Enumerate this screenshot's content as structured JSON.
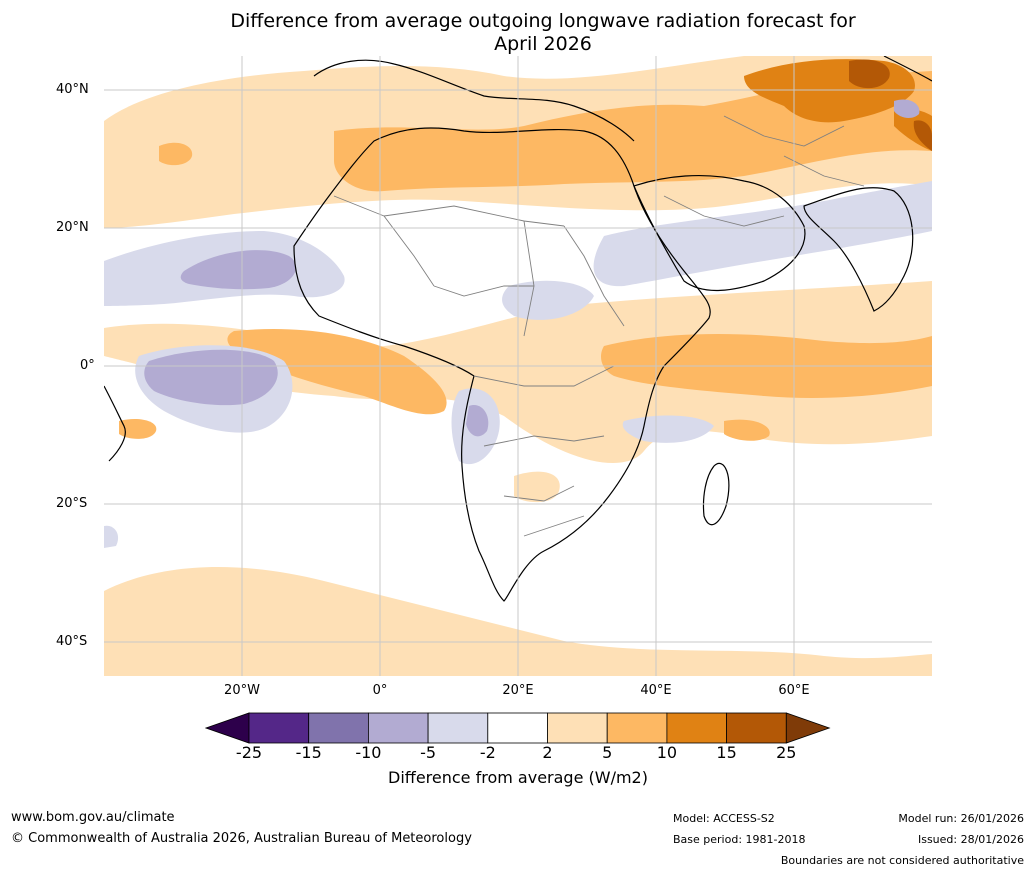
{
  "title_line1": "Difference from average outgoing longwave radiation forecast for",
  "title_line2": "April 2026",
  "lat_labels": [
    "40°N",
    "20°N",
    "0°",
    "20°S",
    "40°S"
  ],
  "lon_labels": [
    "20°W",
    "0°",
    "20°E",
    "40°E",
    "60°E"
  ],
  "colorbar": {
    "ticks": [
      "-25",
      "-15",
      "-10",
      "-5",
      "-2",
      "2",
      "5",
      "10",
      "15",
      "25"
    ],
    "colors": [
      "#2d004b",
      "#542788",
      "#8073ac",
      "#b2abd2",
      "#d8daeb",
      "#ffffff",
      "#fee0b6",
      "#fdb863",
      "#e08214",
      "#b35806",
      "#7f3b08"
    ],
    "label": "Difference from average (W/m2)"
  },
  "footer": {
    "website": "www.bom.gov.au/climate",
    "copyright": "© Commonwealth of Australia 2026, Australian Bureau of Meteorology",
    "model": "Model: ACCESS-S2",
    "base_period": "Base period: 1981-2018",
    "model_run": "Model run: 26/01/2026",
    "issued": "Issued: 28/01/2026",
    "disclaimer": "Boundaries are not considered authoritative"
  }
}
